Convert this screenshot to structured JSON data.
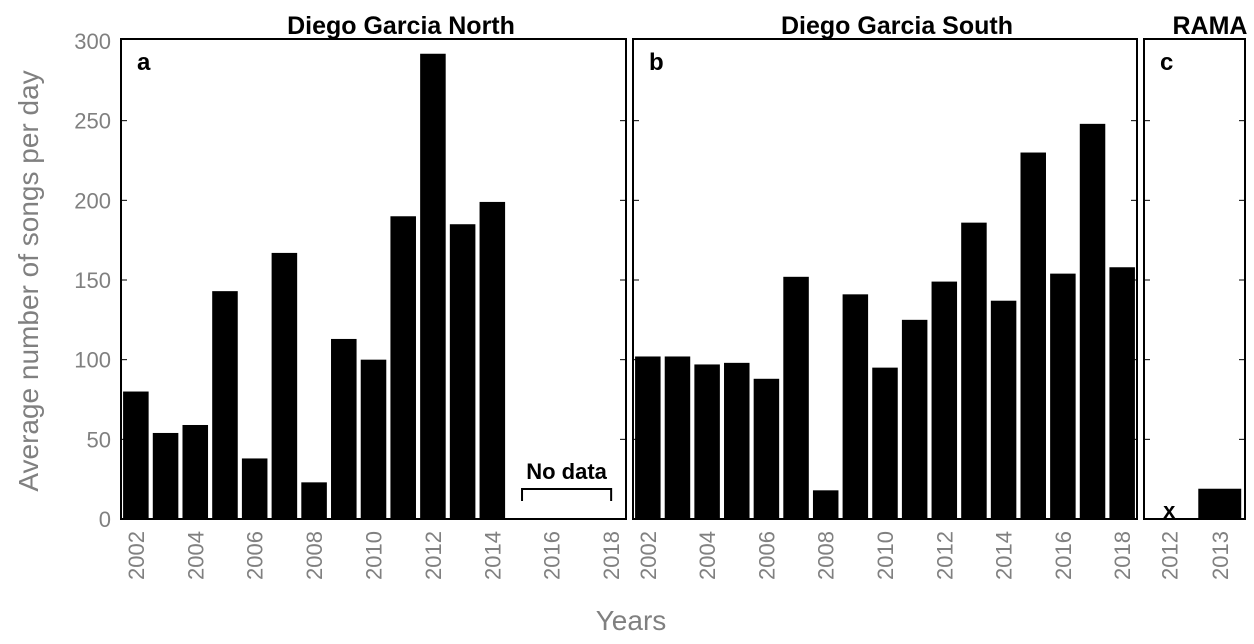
{
  "colors": {
    "bar": "#000000",
    "tick_label": "#808080",
    "frame": "#000000"
  },
  "shared": {
    "ylabel": "Average number of songs per day",
    "xlabel": "Years",
    "y_ticks": [
      "0",
      "50",
      "100",
      "150",
      "200",
      "250",
      "300"
    ]
  },
  "chart_data": [
    {
      "type": "bar",
      "title": "Diego Garcia North",
      "panel_label": "a",
      "categories": [
        "2002",
        "2003",
        "2004",
        "2005",
        "2006",
        "2007",
        "2008",
        "2009",
        "2010",
        "2011",
        "2012",
        "2013",
        "2014",
        "2015",
        "2016",
        "2017",
        "2018"
      ],
      "x_tick_labels": [
        "2002",
        "2004",
        "2006",
        "2008",
        "2010",
        "2012",
        "2014",
        "2016",
        "2018"
      ],
      "values": [
        80,
        54,
        59,
        143,
        38,
        167,
        23,
        113,
        100,
        190,
        292,
        185,
        199,
        null,
        null,
        null,
        null
      ],
      "ylim": [
        0,
        300
      ],
      "annotation": {
        "text": "No data",
        "from": "2015",
        "to": "2018"
      }
    },
    {
      "type": "bar",
      "title": "Diego Garcia South",
      "panel_label": "b",
      "categories": [
        "2002",
        "2003",
        "2004",
        "2005",
        "2006",
        "2007",
        "2008",
        "2009",
        "2010",
        "2011",
        "2012",
        "2013",
        "2014",
        "2015",
        "2016",
        "2017",
        "2018"
      ],
      "x_tick_labels": [
        "2002",
        "2004",
        "2006",
        "2008",
        "2010",
        "2012",
        "2014",
        "2016",
        "2018"
      ],
      "values": [
        102,
        102,
        97,
        98,
        88,
        152,
        18,
        141,
        95,
        125,
        149,
        186,
        137,
        230,
        154,
        248,
        158
      ],
      "ylim": [
        0,
        300
      ]
    },
    {
      "type": "bar",
      "title": "RAMA",
      "panel_label": "c",
      "categories": [
        "2012",
        "2013"
      ],
      "x_tick_labels": [
        "2012",
        "2013"
      ],
      "values": [
        null,
        19
      ],
      "ylim": [
        0,
        300
      ],
      "missing_marker": {
        "category": "2012",
        "text": "x"
      }
    }
  ]
}
